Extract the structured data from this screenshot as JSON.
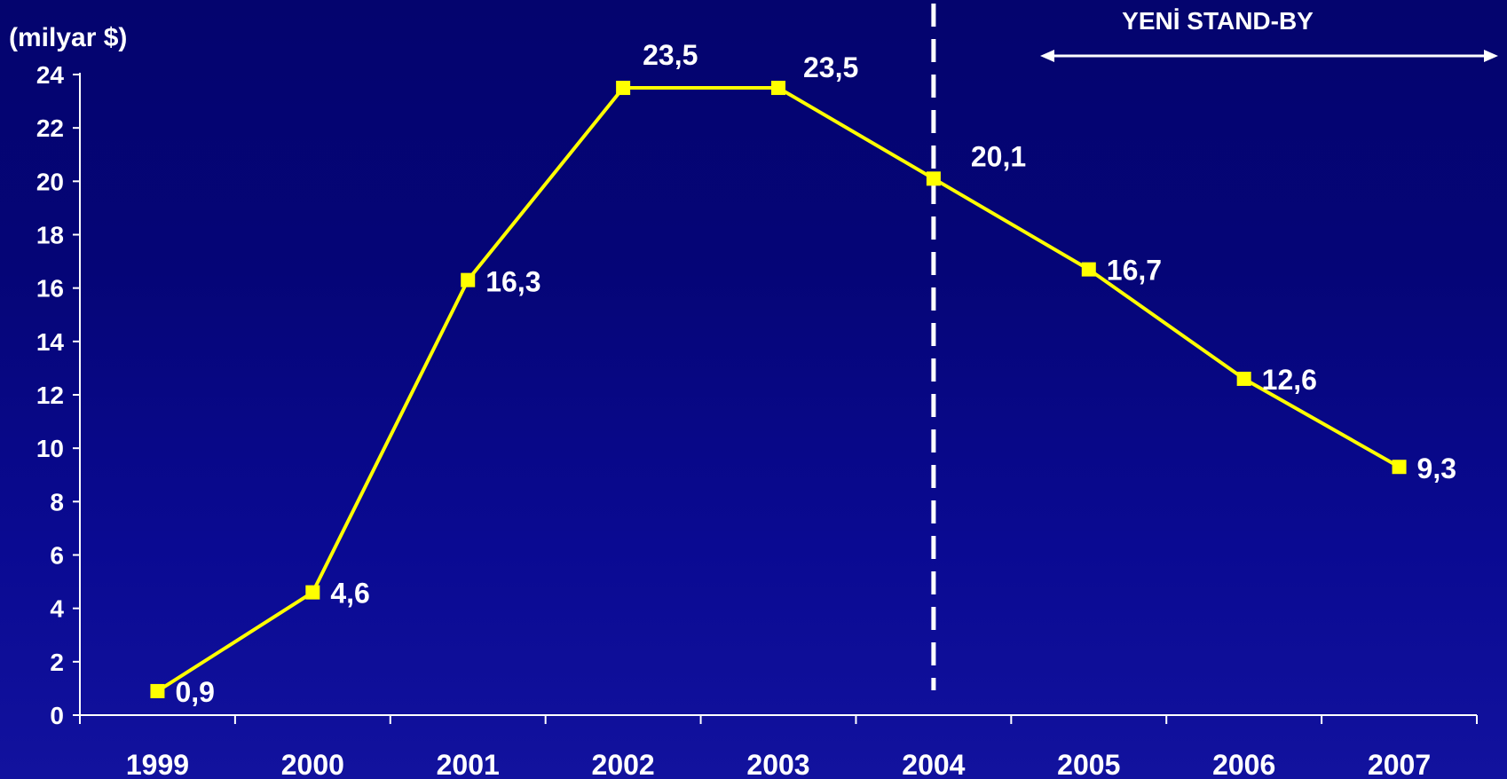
{
  "chart_data": {
    "type": "line",
    "title": "",
    "ylabel": "(milyar $)",
    "xlabel": "",
    "categories": [
      "1999",
      "2000",
      "2001",
      "2002",
      "2003",
      "2004",
      "2005",
      "2006",
      "2007"
    ],
    "series": [
      {
        "values": [
          0.9,
          4.6,
          16.3,
          23.5,
          23.5,
          20.1,
          16.7,
          12.6,
          9.3
        ]
      }
    ],
    "data_labels": [
      "0,9",
      "4,6",
      "16,3",
      "23,5",
      "23,5",
      "20,1",
      "16,7",
      "12,6",
      "9,3"
    ],
    "ylim": [
      0,
      24
    ],
    "yticks": [
      0,
      2,
      4,
      6,
      8,
      10,
      12,
      14,
      16,
      18,
      20,
      22,
      24
    ],
    "grid": false,
    "annotations": {
      "divider_after_category": "2004",
      "range_label": "YENİ STAND-BY"
    },
    "colors": {
      "line": "#ffff00",
      "marker": "#ffff00",
      "text": "#ffffff",
      "axis": "#ffffff",
      "divider": "#ffffff"
    }
  }
}
